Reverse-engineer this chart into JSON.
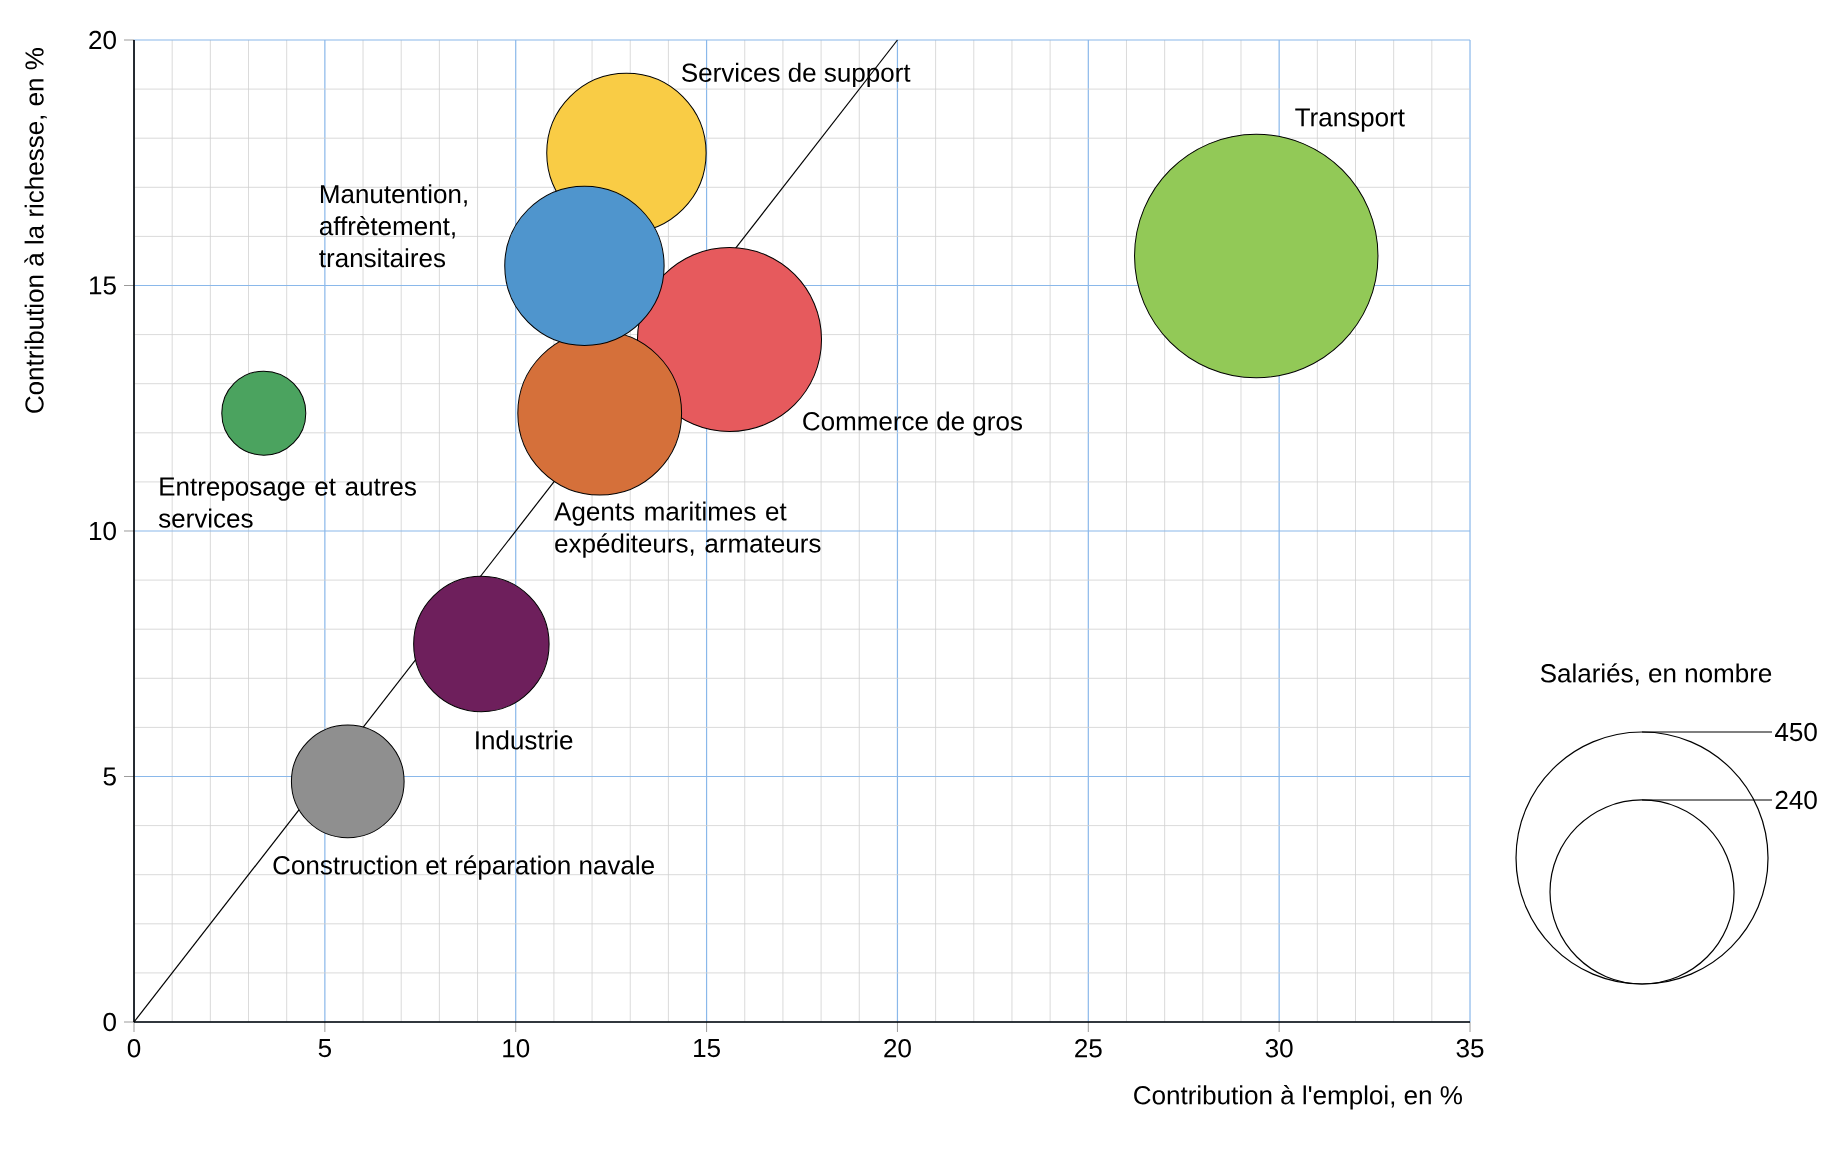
{
  "chart_data": {
    "type": "bubble",
    "xlabel": "Contribution à l'emploi, en %",
    "ylabel": "Contribution à la richesse, en %",
    "legend_title": "Salariés, en nombre",
    "xlim": [
      0,
      35
    ],
    "ylim": [
      0,
      20
    ],
    "xticks": [
      0,
      5,
      10,
      15,
      20,
      25,
      30,
      35
    ],
    "yticks": [
      0,
      5,
      10,
      15,
      20
    ],
    "grid": true,
    "size_legend": [
      240,
      450
    ],
    "series": [
      {
        "name": "Transport",
        "color": "#92c957",
        "x": [
          29.4
        ],
        "values": [
          15.6
        ],
        "sizes": [
          420
        ]
      },
      {
        "name": "Services de support",
        "color": "#f9cc45",
        "x": [
          12.9
        ],
        "values": [
          17.7
        ],
        "sizes": [
          180
        ]
      },
      {
        "name": "Commerce de gros",
        "color": "#e65a5d",
        "x": [
          15.6
        ],
        "values": [
          13.9
        ],
        "sizes": [
          240
        ]
      },
      {
        "name": "Agents maritimes et expéditeurs, armateurs",
        "color": "#d5703a",
        "x": [
          12.2
        ],
        "values": [
          12.4
        ],
        "sizes": [
          190
        ]
      },
      {
        "name": "Manutention, affrètement, transitaires",
        "color": "#4f95cd",
        "x": [
          11.8
        ],
        "values": [
          15.4
        ],
        "sizes": [
          180
        ]
      },
      {
        "name": "Entreposage et autres services",
        "color": "#4ba35f",
        "x": [
          3.4
        ],
        "values": [
          12.4
        ],
        "sizes": [
          50
        ]
      },
      {
        "name": "Industrie",
        "color": "#6e1f5c",
        "x": [
          9.1
        ],
        "values": [
          7.7
        ],
        "sizes": [
          130
        ]
      },
      {
        "name": "Construction et réparation navale",
        "color": "#8f8f8f",
        "x": [
          5.6
        ],
        "values": [
          4.9
        ],
        "sizes": [
          90
        ]
      },
      {
        "type": "line",
        "color": "#000000",
        "x": [
          0,
          20
        ],
        "values": [
          0,
          20
        ]
      }
    ]
  }
}
